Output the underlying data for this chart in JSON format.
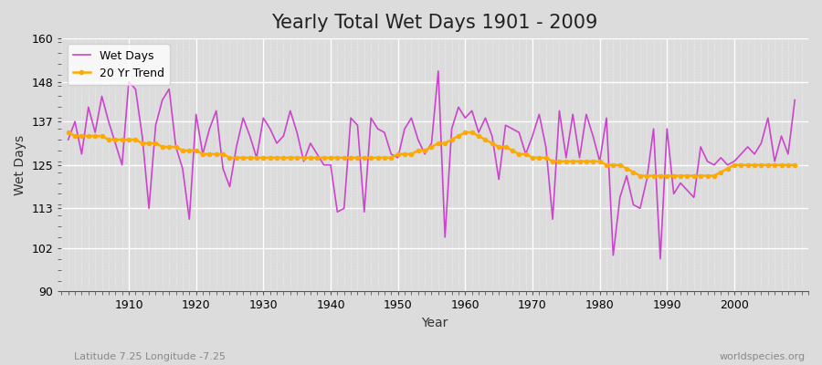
{
  "title": "Yearly Total Wet Days 1901 - 2009",
  "xlabel": "Year",
  "ylabel": "Wet Days",
  "subtitle": "Latitude 7.25 Longitude -7.25",
  "watermark": "worldspecies.org",
  "line_color": "#cc44cc",
  "trend_color": "#ffaa00",
  "bg_color": "#dcdcdc",
  "fig_color": "#dcdcdc",
  "ylim": [
    90,
    160
  ],
  "yticks": [
    90,
    102,
    113,
    125,
    137,
    148,
    160
  ],
  "xticks": [
    1910,
    1920,
    1930,
    1940,
    1950,
    1960,
    1970,
    1980,
    1990,
    2000
  ],
  "years": [
    1901,
    1902,
    1903,
    1904,
    1905,
    1906,
    1907,
    1908,
    1909,
    1910,
    1911,
    1912,
    1913,
    1914,
    1915,
    1916,
    1917,
    1918,
    1919,
    1920,
    1921,
    1922,
    1923,
    1924,
    1925,
    1926,
    1927,
    1928,
    1929,
    1930,
    1931,
    1932,
    1933,
    1934,
    1935,
    1936,
    1937,
    1938,
    1939,
    1940,
    1941,
    1942,
    1943,
    1944,
    1945,
    1946,
    1947,
    1948,
    1949,
    1950,
    1951,
    1952,
    1953,
    1954,
    1955,
    1956,
    1957,
    1958,
    1959,
    1960,
    1961,
    1962,
    1963,
    1964,
    1965,
    1966,
    1967,
    1968,
    1969,
    1970,
    1971,
    1972,
    1973,
    1974,
    1975,
    1976,
    1977,
    1978,
    1979,
    1980,
    1981,
    1982,
    1983,
    1984,
    1985,
    1986,
    1987,
    1988,
    1989,
    1990,
    1991,
    1992,
    1993,
    1994,
    1995,
    1996,
    1997,
    1998,
    1999,
    2000,
    2001,
    2002,
    2003,
    2004,
    2005,
    2006,
    2007,
    2008,
    2009
  ],
  "wet_days": [
    132,
    137,
    128,
    141,
    134,
    144,
    137,
    131,
    125,
    148,
    146,
    133,
    113,
    136,
    143,
    146,
    130,
    124,
    110,
    139,
    128,
    135,
    140,
    124,
    119,
    130,
    138,
    133,
    127,
    138,
    135,
    131,
    133,
    140,
    134,
    126,
    131,
    128,
    125,
    125,
    112,
    113,
    138,
    136,
    112,
    138,
    135,
    134,
    128,
    127,
    135,
    138,
    132,
    128,
    131,
    151,
    105,
    135,
    141,
    138,
    140,
    134,
    138,
    133,
    121,
    136,
    135,
    134,
    128,
    133,
    139,
    130,
    110,
    140,
    127,
    139,
    127,
    139,
    133,
    126,
    138,
    100,
    116,
    122,
    114,
    113,
    121,
    135,
    99,
    135,
    117,
    120,
    118,
    116,
    130,
    126,
    125,
    127,
    125,
    126,
    128,
    130,
    128,
    131,
    138,
    126,
    133,
    128,
    143
  ],
  "trend": [
    134,
    133,
    133,
    133,
    133,
    133,
    132,
    132,
    132,
    132,
    132,
    131,
    131,
    131,
    130,
    130,
    130,
    129,
    129,
    129,
    128,
    128,
    128,
    128,
    127,
    127,
    127,
    127,
    127,
    127,
    127,
    127,
    127,
    127,
    127,
    127,
    127,
    127,
    127,
    127,
    127,
    127,
    127,
    127,
    127,
    127,
    127,
    127,
    127,
    128,
    128,
    128,
    129,
    129,
    130,
    131,
    131,
    132,
    133,
    134,
    134,
    133,
    132,
    131,
    130,
    130,
    129,
    128,
    128,
    127,
    127,
    127,
    126,
    126,
    126,
    126,
    126,
    126,
    126,
    126,
    125,
    125,
    125,
    124,
    123,
    122,
    122,
    122,
    122,
    122,
    122,
    122,
    122,
    122,
    122,
    122,
    122,
    123,
    124,
    125,
    125,
    125,
    125,
    125,
    125,
    125,
    125,
    125,
    125
  ]
}
